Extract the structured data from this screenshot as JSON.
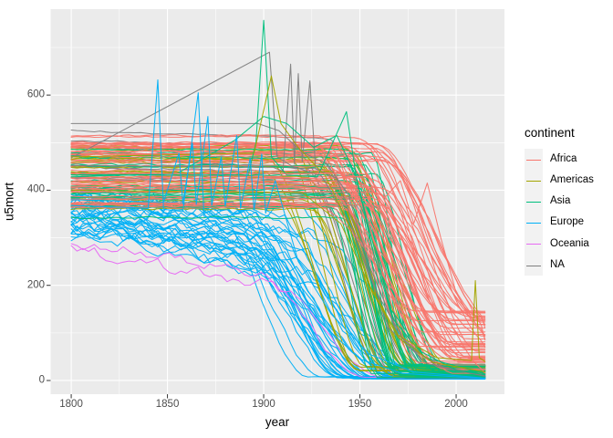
{
  "accent_colors": {
    "panel_background": "#EBEBEB",
    "grid": "#FFFFFF",
    "tick_text": "#4D4D4D",
    "axis_title_text": "#000000",
    "legend_key_fill": "#F2F2F2"
  },
  "legend": {
    "title": "continent",
    "entries": [
      {
        "label": "Africa",
        "color": "#F8766D"
      },
      {
        "label": "Americas",
        "color": "#A3A500"
      },
      {
        "label": "Asia",
        "color": "#00BF7D"
      },
      {
        "label": "Europe",
        "color": "#00B0F6"
      },
      {
        "label": "Oceania",
        "color": "#E76BF3"
      },
      {
        "label": "NA",
        "color": "#7F7F7F"
      }
    ]
  },
  "chart_data": {
    "type": "line",
    "title": "",
    "xlabel": "year",
    "ylabel": "u5mort",
    "x_domain": [
      1789.3,
      2025.1
    ],
    "y_domain": [
      -28.8,
      780.6
    ],
    "x_ticks": [
      1800,
      1850,
      1900,
      1950,
      2000
    ],
    "y_ticks": [
      0,
      200,
      400,
      600
    ],
    "x_minor_ticks": [
      1825,
      1875,
      1925,
      1975
    ],
    "y_minor_ticks": [
      100,
      300,
      500,
      700
    ],
    "x_data_range": [
      1800,
      2015
    ],
    "grid": true,
    "legend_position": "right",
    "groups": [
      {
        "name": "Europe",
        "color": "#00B0F6",
        "count": 34,
        "seed": 11,
        "base": [
          300,
          405
        ],
        "wiggle": 15,
        "drift_start": [
          1800,
          1835
        ],
        "drift_rate": [
          0.3,
          1.1
        ],
        "decline_start": [
          1875,
          1925
        ],
        "decline_duration": [
          40,
          75
        ],
        "end": [
          3,
          9
        ]
      },
      {
        "name": "Oceania",
        "color": "#E76BF3",
        "count": 2,
        "seed": 23,
        "base": [
          240,
          330
        ],
        "wiggle": 13,
        "drift_start": [
          1800,
          1810
        ],
        "drift_rate": [
          0.6,
          1.0
        ],
        "decline_start": [
          1890,
          1915
        ],
        "decline_duration": [
          40,
          60
        ],
        "end": [
          4,
          7
        ]
      },
      {
        "name": "NA",
        "color": "#7F7F7F",
        "count": 10,
        "seed": 37,
        "base": [
          390,
          530
        ],
        "wiggle": 2,
        "drift_start": [
          1800,
          1800
        ],
        "drift_rate": [
          0,
          0.25
        ],
        "decline_start": [
          1905,
          1945
        ],
        "decline_duration": [
          35,
          60
        ],
        "end": [
          5,
          25
        ]
      },
      {
        "name": "Americas",
        "color": "#A3A500",
        "count": 24,
        "seed": 47,
        "base": [
          350,
          500
        ],
        "wiggle": 2.5,
        "decline_start": [
          1895,
          1948
        ],
        "decline_duration": [
          35,
          60
        ],
        "end": [
          8,
          35
        ]
      },
      {
        "name": "Asia",
        "color": "#00BF7D",
        "count": 30,
        "seed": 59,
        "base": [
          340,
          505
        ],
        "wiggle": 2.5,
        "decline_start": [
          1933,
          1960
        ],
        "decline_duration": [
          20,
          40
        ],
        "end": [
          5,
          35
        ]
      },
      {
        "name": "Africa",
        "color": "#F8766D",
        "count": 50,
        "seed": 71,
        "base": [
          360,
          515
        ],
        "wiggle": 2,
        "decline_start": [
          1925,
          1962
        ],
        "decline_duration": [
          45,
          70
        ],
        "end": [
          15,
          150
        ],
        "decline_wiggle": 9
      }
    ],
    "features": [
      {
        "name": "na-diagonal-rise",
        "continent": "NA",
        "points": [
          [
            1800,
            468
          ],
          [
            1903,
            690
          ],
          [
            1907,
            470
          ],
          [
            1915,
            450
          ],
          [
            1930,
            430
          ],
          [
            1945,
            330
          ],
          [
            1958,
            190
          ],
          [
            1975,
            70
          ],
          [
            1995,
            25
          ],
          [
            2015,
            10
          ]
        ]
      },
      {
        "name": "na-flat-540",
        "continent": "NA",
        "points": [
          [
            1800,
            540
          ],
          [
            1897,
            540
          ],
          [
            1908,
            525
          ],
          [
            1920,
            480
          ],
          [
            1933,
            455
          ],
          [
            1944,
            390
          ],
          [
            1955,
            240
          ],
          [
            1970,
            95
          ],
          [
            1990,
            30
          ],
          [
            2015,
            9
          ]
        ]
      },
      {
        "name": "na-war-spikes",
        "continent": "NA",
        "points": [
          [
            1800,
            452
          ],
          [
            1905,
            448
          ],
          [
            1910,
            440
          ],
          [
            1914,
            665
          ],
          [
            1916,
            455
          ],
          [
            1918,
            645
          ],
          [
            1920,
            460
          ],
          [
            1924,
            630
          ],
          [
            1927,
            445
          ],
          [
            1938,
            425
          ],
          [
            1950,
            290
          ],
          [
            1965,
            110
          ],
          [
            1985,
            35
          ],
          [
            2015,
            11
          ]
        ]
      },
      {
        "name": "asia-spike-1900",
        "continent": "Asia",
        "points": [
          [
            1800,
            432
          ],
          [
            1892,
            432
          ],
          [
            1896,
            500
          ],
          [
            1900,
            757
          ],
          [
            1904,
            470
          ],
          [
            1912,
            432
          ],
          [
            1928,
            428
          ],
          [
            1943,
            565
          ],
          [
            1948,
            430
          ],
          [
            1956,
            300
          ],
          [
            1966,
            150
          ],
          [
            1982,
            60
          ],
          [
            2000,
            22
          ],
          [
            2015,
            12
          ]
        ]
      },
      {
        "name": "asia-rise-curve",
        "continent": "Asia",
        "points": [
          [
            1800,
            428
          ],
          [
            1855,
            435
          ],
          [
            1885,
            505
          ],
          [
            1900,
            555
          ],
          [
            1912,
            540
          ],
          [
            1926,
            490
          ],
          [
            1938,
            515
          ],
          [
            1948,
            430
          ],
          [
            1957,
            270
          ],
          [
            1967,
            130
          ],
          [
            1984,
            48
          ],
          [
            2015,
            14
          ]
        ]
      },
      {
        "name": "americas-rise-spike",
        "continent": "Americas",
        "points": [
          [
            1800,
            470
          ],
          [
            1895,
            478
          ],
          [
            1904,
            640
          ],
          [
            1909,
            540
          ],
          [
            1918,
            490
          ],
          [
            1932,
            430
          ],
          [
            1944,
            330
          ],
          [
            1956,
            190
          ],
          [
            1970,
            90
          ],
          [
            1988,
            38
          ],
          [
            2015,
            18
          ]
        ]
      },
      {
        "name": "americas-late-spike",
        "continent": "Americas",
        "points": [
          [
            1800,
            400
          ],
          [
            1920,
            395
          ],
          [
            1940,
            330
          ],
          [
            1955,
            200
          ],
          [
            1970,
            95
          ],
          [
            1990,
            48
          ],
          [
            2008,
            42
          ],
          [
            2010,
            210
          ],
          [
            2012,
            48
          ],
          [
            2015,
            40
          ]
        ]
      },
      {
        "name": "africa-humps",
        "continent": "Africa",
        "points": [
          [
            1800,
            435
          ],
          [
            1940,
            435
          ],
          [
            1952,
            425
          ],
          [
            1963,
            385
          ],
          [
            1971,
            420
          ],
          [
            1978,
            330
          ],
          [
            1985,
            415
          ],
          [
            1992,
            300
          ],
          [
            2000,
            185
          ],
          [
            2008,
            125
          ],
          [
            2015,
            95
          ]
        ]
      },
      {
        "name": "europe-tall-spikes",
        "continent": "Europe",
        "points": [
          [
            1800,
            368
          ],
          [
            1840,
            362
          ],
          [
            1845,
            632
          ],
          [
            1848,
            360
          ],
          [
            1858,
            355
          ],
          [
            1866,
            605
          ],
          [
            1869,
            345
          ],
          [
            1880,
            338
          ],
          [
            1895,
            300
          ],
          [
            1912,
            210
          ],
          [
            1930,
            120
          ],
          [
            1950,
            45
          ],
          [
            1972,
            15
          ],
          [
            2015,
            4
          ]
        ]
      },
      {
        "name": "europe-spike-cluster",
        "continent": "Europe",
        "points": [
          [
            1800,
            380
          ],
          [
            1848,
            375
          ],
          [
            1856,
            478
          ],
          [
            1858,
            372
          ],
          [
            1863,
            498
          ],
          [
            1865,
            370
          ],
          [
            1871,
            555
          ],
          [
            1873,
            368
          ],
          [
            1878,
            470
          ],
          [
            1880,
            366
          ],
          [
            1886,
            515
          ],
          [
            1888,
            362
          ],
          [
            1893,
            468
          ],
          [
            1895,
            358
          ],
          [
            1899,
            476
          ],
          [
            1901,
            352
          ],
          [
            1906,
            420
          ],
          [
            1918,
            250
          ],
          [
            1935,
            140
          ],
          [
            1955,
            55
          ],
          [
            1978,
            18
          ],
          [
            2015,
            5
          ]
        ]
      }
    ]
  }
}
